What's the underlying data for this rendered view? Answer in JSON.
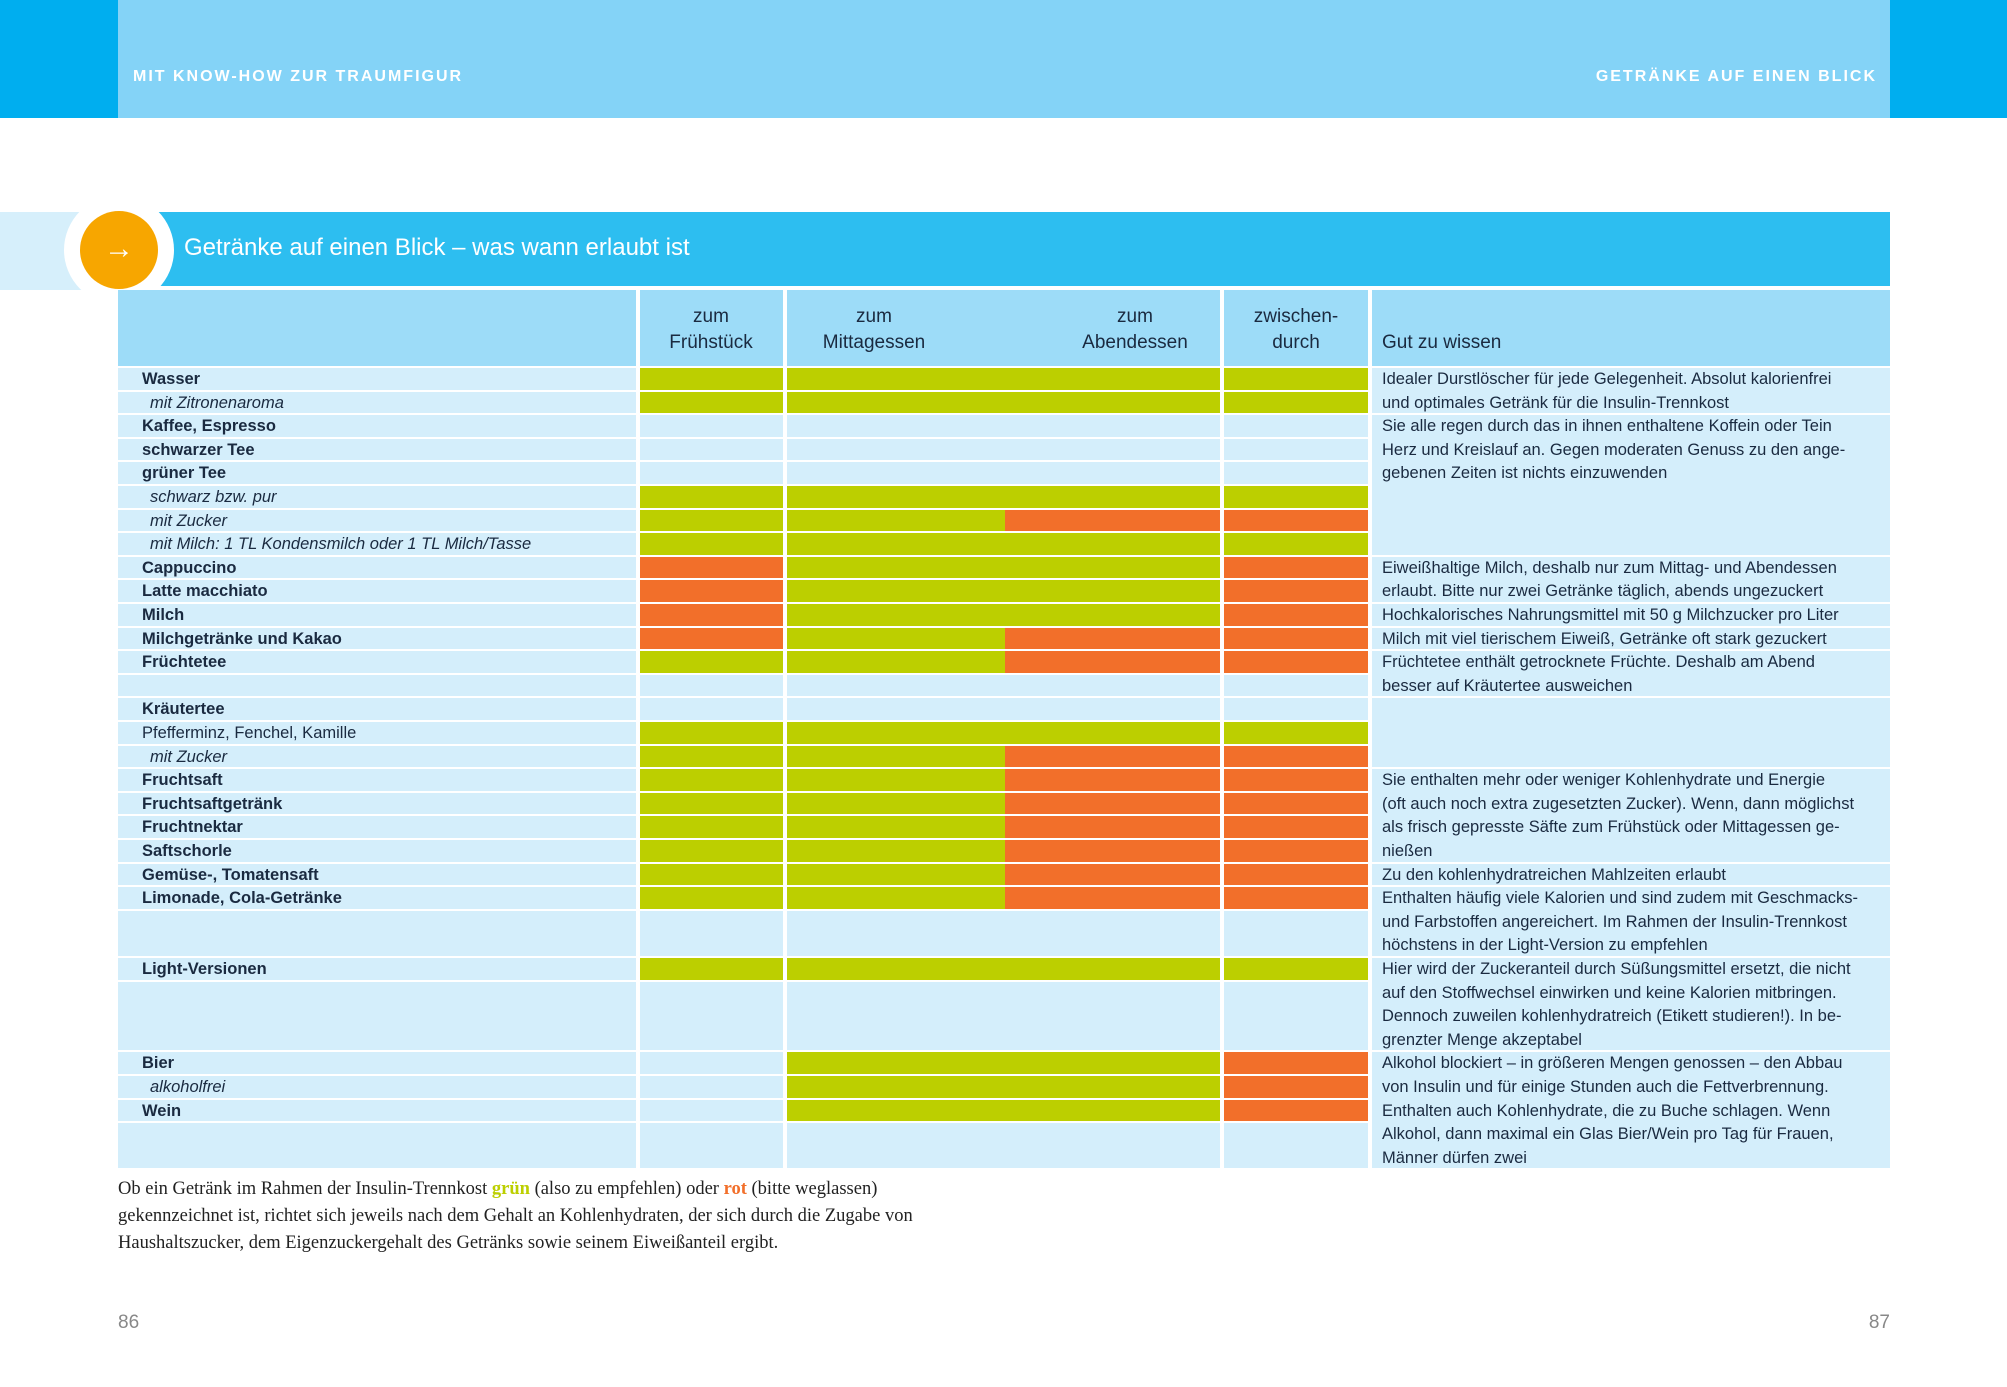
{
  "header": {
    "left": "MIT KNOW-HOW ZUR TRAUMFIGUR",
    "right": "GETRÄNKE AUF EINEN BLICK"
  },
  "title": "Getränke auf einen Blick – was wann erlaubt ist",
  "colors": {
    "green": "#bccf00",
    "red": "#f26f2a"
  },
  "table": {
    "columns": {
      "breakfast": [
        "zum",
        "Frühstück"
      ],
      "lunch": [
        "zum",
        "Mittagessen"
      ],
      "dinner": [
        "zum",
        "Abendessen"
      ],
      "between": [
        "zwischen-",
        "durch"
      ],
      "note": [
        "Gut zu wissen"
      ]
    },
    "groups": [
      {
        "rows": [
          {
            "label": "Wasser",
            "style": "bold",
            "cells": [
              "green",
              "green",
              "green",
              "green"
            ]
          },
          {
            "label": "mit Zitronenaroma",
            "style": "italic",
            "cells": [
              "green",
              "green",
              "green",
              "green"
            ]
          }
        ],
        "note": [
          "Idealer Durstlöscher für jede Gelegenheit. Absolut kalorienfrei",
          "und optimales Getränk für die Insulin-Trennkost"
        ]
      },
      {
        "rows": [
          {
            "label": "Kaffee, Espresso",
            "style": "bold",
            "cells": [
              null,
              null,
              null,
              null
            ]
          },
          {
            "label": "schwarzer Tee",
            "style": "bold",
            "cells": [
              null,
              null,
              null,
              null
            ]
          },
          {
            "label": "grüner Tee",
            "style": "bold",
            "cells": [
              null,
              null,
              null,
              null
            ]
          },
          {
            "label": "schwarz bzw. pur",
            "style": "italic",
            "cells": [
              "green",
              "green",
              "green",
              "green"
            ]
          },
          {
            "label": "mit Zucker",
            "style": "italic",
            "cells": [
              "green",
              "green",
              "red",
              "red"
            ]
          },
          {
            "label": "mit Milch: 1 TL Kondensmilch oder 1 TL Milch/Tasse",
            "style": "italic",
            "cells": [
              "green",
              "green",
              "green",
              "green"
            ]
          }
        ],
        "note": [
          "Sie alle regen durch das in ihnen enthaltene Koffein oder Tein",
          "Herz und Kreislauf an. Gegen moderaten Genuss zu den ange-",
          "gebenen Zeiten ist nichts einzuwenden"
        ]
      },
      {
        "rows": [
          {
            "label": "Cappuccino",
            "style": "bold",
            "cells": [
              "red",
              "green",
              "green",
              "red"
            ]
          },
          {
            "label": "Latte macchiato",
            "style": "bold",
            "cells": [
              "red",
              "green",
              "green",
              "red"
            ]
          }
        ],
        "note": [
          "Eiweißhaltige Milch, deshalb nur zum Mittag- und Abendessen",
          "erlaubt. Bitte nur zwei Getränke täglich, abends ungezuckert"
        ]
      },
      {
        "rows": [
          {
            "label": "Milch",
            "style": "bold",
            "cells": [
              "red",
              "green",
              "green",
              "red"
            ]
          }
        ],
        "note": [
          "Hochkalorisches Nahrungsmittel mit 50 g Milchzucker pro Liter"
        ]
      },
      {
        "rows": [
          {
            "label": "Milchgetränke und Kakao",
            "style": "bold",
            "cells": [
              "red",
              "green",
              "red",
              "red"
            ]
          }
        ],
        "note": [
          "Milch mit viel tierischem Eiweiß, Getränke oft stark gezuckert"
        ]
      },
      {
        "rows": [
          {
            "label": "Früchtetee",
            "style": "bold",
            "cells": [
              "green",
              "green",
              "red",
              "red"
            ]
          }
        ],
        "note": [
          "Früchtetee enthält getrocknete Früchte. Deshalb am Abend",
          "besser auf Kräutertee ausweichen"
        ]
      },
      {
        "rows": [
          {
            "label": "Kräutertee",
            "style": "bold",
            "cells": [
              null,
              null,
              null,
              null
            ]
          },
          {
            "label": "Pfefferminz, Fenchel, Kamille",
            "style": "normal",
            "cells": [
              "green",
              "green",
              "green",
              "green"
            ]
          },
          {
            "label": "mit Zucker",
            "style": "italic",
            "cells": [
              "green",
              "green",
              "red",
              "red"
            ]
          }
        ],
        "note": []
      },
      {
        "rows": [
          {
            "label": "Fruchtsaft",
            "style": "bold",
            "cells": [
              "green",
              "green",
              "red",
              "red"
            ]
          },
          {
            "label": "Fruchtsaftgetränk",
            "style": "bold",
            "cells": [
              "green",
              "green",
              "red",
              "red"
            ]
          },
          {
            "label": "Fruchtnektar",
            "style": "bold",
            "cells": [
              "green",
              "green",
              "red",
              "red"
            ]
          },
          {
            "label": "Saftschorle",
            "style": "bold",
            "cells": [
              "green",
              "green",
              "red",
              "red"
            ]
          }
        ],
        "note": [
          "Sie enthalten mehr oder weniger Kohlenhydrate und Energie",
          "(oft auch noch extra zugesetzten Zucker). Wenn, dann möglichst",
          "als frisch gepresste Säfte zum Frühstück oder Mittagessen ge-",
          "nießen"
        ]
      },
      {
        "rows": [
          {
            "label": "Gemüse-, Tomatensaft",
            "style": "bold",
            "cells": [
              "green",
              "green",
              "red",
              "red"
            ]
          }
        ],
        "note": [
          "Zu den kohlenhydratreichen Mahlzeiten erlaubt"
        ]
      },
      {
        "rows": [
          {
            "label": "Limonade, Cola-Getränke",
            "style": "bold",
            "cells": [
              "green",
              "green",
              "red",
              "red"
            ]
          }
        ],
        "note": [
          "Enthalten häufig viele Kalorien und sind zudem mit Geschmacks-",
          "und Farbstoffen angereichert. Im Rahmen der Insulin-Trennkost",
          "höchstens in der Light-Version zu empfehlen"
        ]
      },
      {
        "rows": [
          {
            "label": "Light-Versionen",
            "style": "bold",
            "cells": [
              "green",
              "green",
              "green",
              "green"
            ]
          }
        ],
        "note": [
          "Hier wird der Zuckeranteil durch Süßungsmittel ersetzt, die nicht",
          "auf den Stoffwechsel einwirken und keine Kalorien mitbringen.",
          "Dennoch zuweilen kohlenhydratreich (Etikett studieren!). In be-",
          "grenzter Menge akzeptabel"
        ]
      },
      {
        "rows": [
          {
            "label": "Bier",
            "style": "bold",
            "cells": [
              null,
              "green",
              "green",
              "red"
            ]
          },
          {
            "label": "alkoholfrei",
            "style": "italic",
            "cells": [
              null,
              "green",
              "green",
              "red"
            ]
          },
          {
            "label": "Wein",
            "style": "bold",
            "cells": [
              null,
              "green",
              "green",
              "red"
            ]
          }
        ],
        "note": [
          "Alkohol blockiert – in größeren Mengen genossen – den Abbau",
          "von Insulin und für einige Stunden auch die Fettverbrennung.",
          "Enthalten auch Kohlenhydrate, die zu Buche schlagen. Wenn",
          "Alkohol, dann maximal ein Glas Bier/Wein pro Tag für Frauen,",
          "Männer dürfen zwei"
        ]
      }
    ]
  },
  "footnote": [
    {
      "text": "Ob ein Getränk im Rahmen der Insulin-Trennkost ",
      "color": null
    },
    {
      "text": "grün",
      "color": "green"
    },
    {
      "text": " (also zu empfehlen) oder ",
      "color": null
    },
    {
      "text": "rot",
      "color": "red"
    },
    {
      "text": " (bitte weglassen) gekennzeichnet ist, richtet sich jeweils nach dem Gehalt an Kohlenhydraten, der sich durch die Zugabe von Haushaltszucker, dem Eigenzuckergehalt des Getränks sowie seinem Eiweißanteil ergibt.",
      "color": null
    }
  ],
  "page_numbers": {
    "left": "86",
    "right": "87"
  }
}
